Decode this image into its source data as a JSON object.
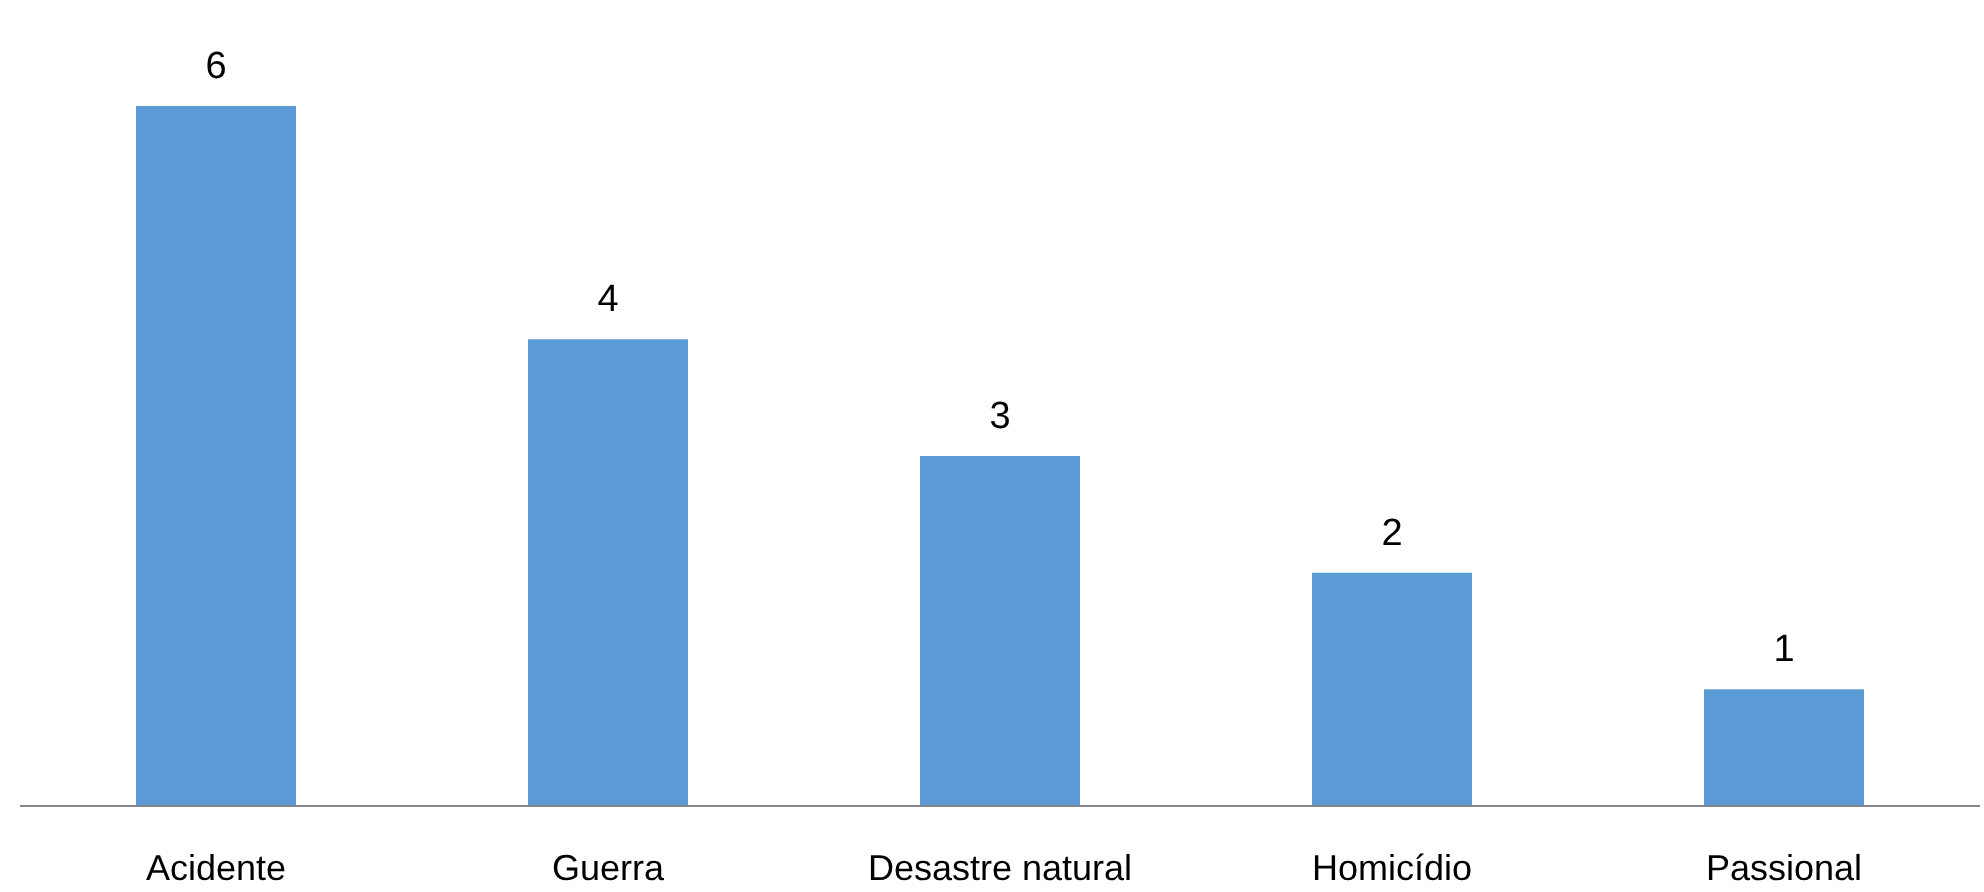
{
  "chart_data": {
    "type": "bar",
    "categories": [
      "Acidente",
      "Guerra",
      "Desastre natural",
      "Homicídio",
      "Passional"
    ],
    "values": [
      6,
      4,
      3,
      2,
      1
    ],
    "color": "#5b9bd5",
    "data_labels": true
  }
}
